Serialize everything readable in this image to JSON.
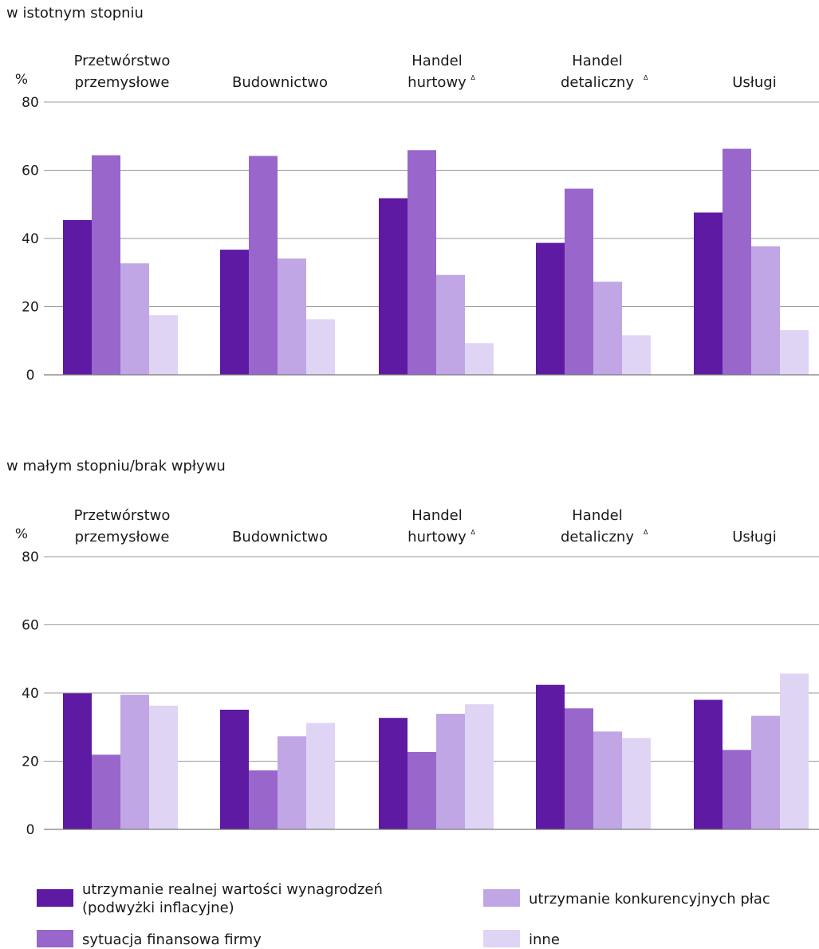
{
  "colors": [
    "#5e1aa2",
    "#9966cc",
    "#c0a6e4",
    "#e0d4f5"
  ],
  "legend": [
    {
      "line1": "utrzymanie realnej wartości wynagrodzeń",
      "line2": "(podwyżki inflacyjne)"
    },
    {
      "line1": "sytuacja finansowa firmy",
      "line2": ""
    },
    {
      "line1": "utrzymanie konkurencyjnych płac",
      "line2": ""
    },
    {
      "line1": "inne",
      "line2": ""
    }
  ],
  "chart_data": [
    {
      "type": "bar",
      "title": "w istotnym stopniu",
      "ylabel": "%",
      "ylim": [
        0,
        80
      ],
      "yticks": [
        0,
        20,
        40,
        60,
        80
      ],
      "grid": true,
      "legend_placement": "bottom",
      "categories": [
        {
          "line1": "Przetwórstwo",
          "line2": "przemysłowe",
          "mark": ""
        },
        {
          "line1": "",
          "line2": "Budownictwo",
          "mark": ""
        },
        {
          "line1": "Handel",
          "line2": "hurtowy",
          "mark": "Δ"
        },
        {
          "line1": "Handel",
          "line2": "detaliczny",
          "mark": "Δ"
        },
        {
          "line1": "",
          "line2": "Usługi",
          "mark": ""
        }
      ],
      "series": [
        {
          "name": "utrzymanie realnej wartości wynagrodzeń (podwyżki inflacyjne)",
          "values": [
            45.4,
            36.7,
            51.8,
            38.7,
            47.6
          ]
        },
        {
          "name": "sytuacja finansowa firmy",
          "values": [
            64.4,
            64.2,
            65.9,
            54.6,
            66.3
          ]
        },
        {
          "name": "utrzymanie konkurencyjnych płac",
          "values": [
            32.7,
            34.1,
            29.3,
            27.3,
            37.7
          ]
        },
        {
          "name": "inne",
          "values": [
            17.5,
            16.3,
            9.3,
            11.6,
            13.1
          ]
        }
      ]
    },
    {
      "type": "bar",
      "title": "w małym stopniu/brak wpływu",
      "ylabel": "%",
      "ylim": [
        0,
        80
      ],
      "yticks": [
        0,
        20,
        40,
        60,
        80
      ],
      "grid": true,
      "legend_placement": "bottom",
      "categories": [
        {
          "line1": "Przetwórstwo",
          "line2": "przemysłowe",
          "mark": ""
        },
        {
          "line1": "",
          "line2": "Budownictwo",
          "mark": ""
        },
        {
          "line1": "Handel",
          "line2": "hurtowy",
          "mark": "Δ"
        },
        {
          "line1": "Handel",
          "line2": "detaliczny",
          "mark": "Δ"
        },
        {
          "line1": "",
          "line2": "Usługi",
          "mark": ""
        }
      ],
      "series": [
        {
          "name": "utrzymanie realnej wartości wynagrodzeń (podwyżki inflacyjne)",
          "values": [
            39.9,
            35.1,
            32.7,
            42.4,
            38.0
          ]
        },
        {
          "name": "sytuacja finansowa firmy",
          "values": [
            21.9,
            17.3,
            22.7,
            35.5,
            23.3
          ]
        },
        {
          "name": "utrzymanie konkurencyjnych płac",
          "values": [
            39.5,
            27.3,
            33.9,
            28.7,
            33.3
          ]
        },
        {
          "name": "inne",
          "values": [
            36.3,
            31.2,
            36.7,
            26.8,
            45.7
          ]
        }
      ]
    }
  ]
}
